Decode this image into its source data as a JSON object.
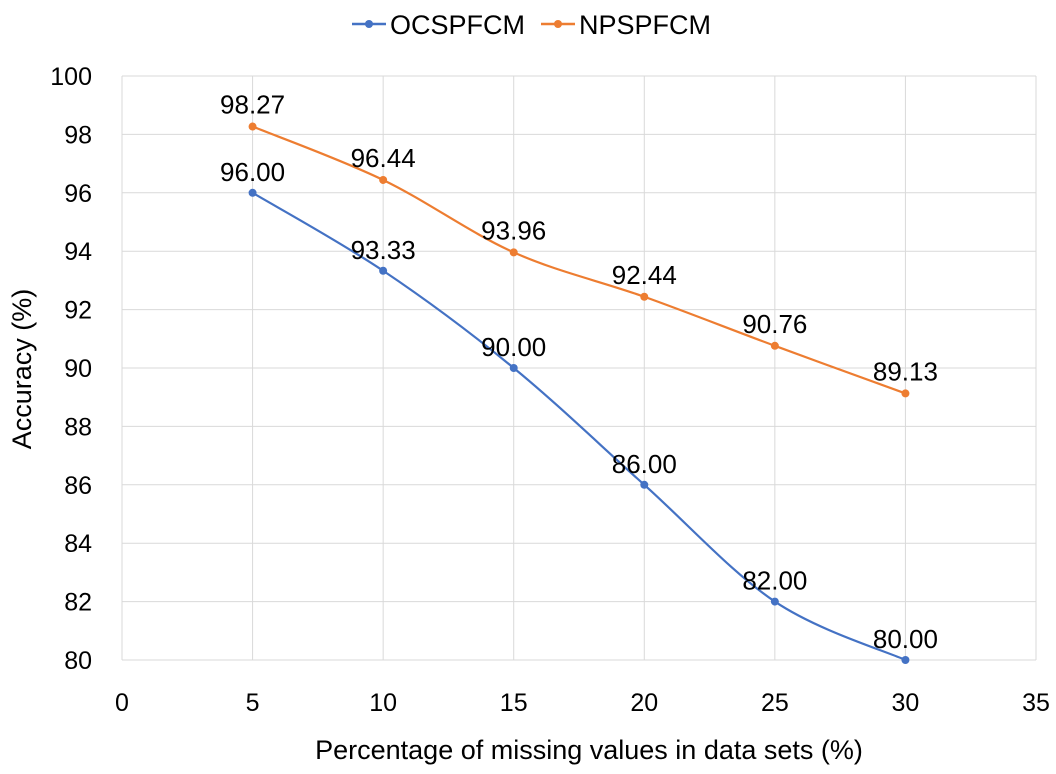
{
  "chart_data": {
    "type": "line",
    "title": "",
    "xlabel": "Percentage of missing values in data sets (%)",
    "ylabel": "Accuracy (%)",
    "xlim": [
      0,
      35
    ],
    "ylim": [
      80,
      100
    ],
    "xticks": [
      0,
      5,
      10,
      15,
      20,
      25,
      30,
      35
    ],
    "yticks": [
      80,
      82,
      84,
      86,
      88,
      90,
      92,
      94,
      96,
      98,
      100
    ],
    "grid": true,
    "legend_position": "top",
    "series": [
      {
        "name": "OCSPFCM",
        "color": "#4472C4",
        "x": [
          5,
          10,
          15,
          20,
          25,
          30
        ],
        "values": [
          96.0,
          93.33,
          90.0,
          86.0,
          82.0,
          80.0
        ],
        "labels": [
          "96.00",
          "93.33",
          "90.00",
          "86.00",
          "82.00",
          "80.00"
        ]
      },
      {
        "name": "NPSPFCM",
        "color": "#ED7D31",
        "x": [
          5,
          10,
          15,
          20,
          25,
          30
        ],
        "values": [
          98.27,
          96.44,
          93.96,
          92.44,
          90.76,
          89.13
        ],
        "labels": [
          "98.27",
          "96.44",
          "93.96",
          "92.44",
          "90.76",
          "89.13"
        ]
      }
    ]
  }
}
